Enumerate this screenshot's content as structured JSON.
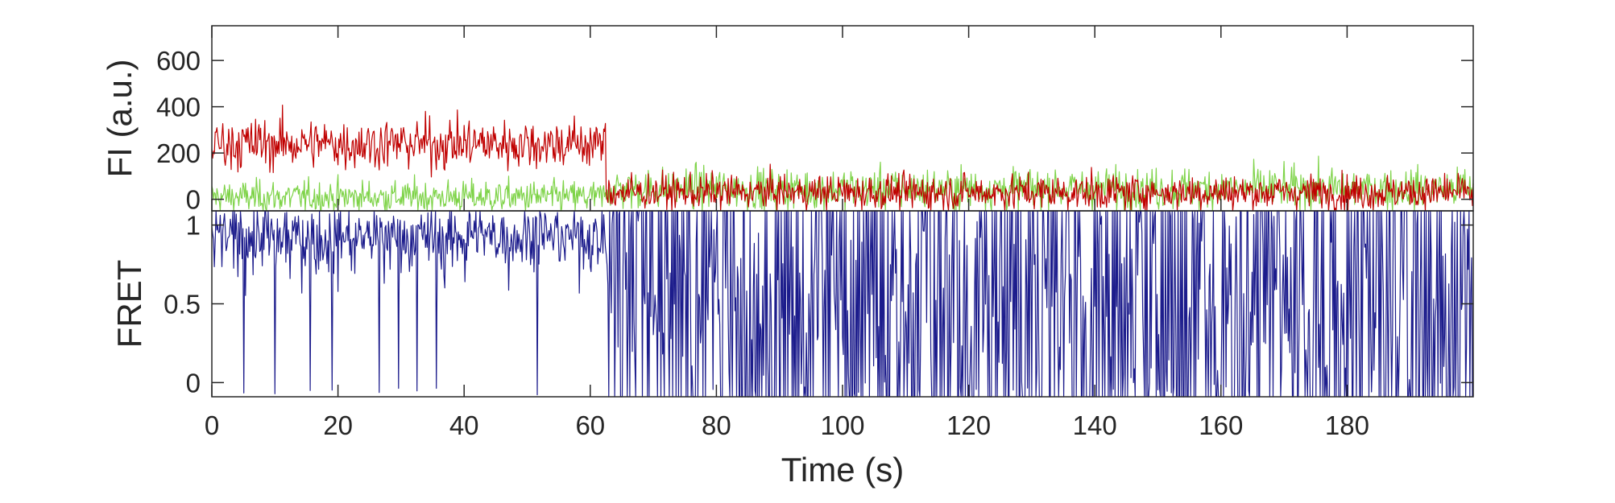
{
  "chart_data": [
    {
      "type": "line",
      "panel": "intensity",
      "ylabel": "FI (a.u.)",
      "xlim": [
        0,
        200
      ],
      "ylim": [
        -50,
        750
      ],
      "yticks": [
        0,
        200,
        400,
        600
      ],
      "ytick_labels": [
        "0",
        "200",
        "400",
        "600"
      ],
      "series": [
        {
          "color": "#c00000",
          "segments": [
            {
              "x_start": 0,
              "x_end": 62.5,
              "mean": 240,
              "noise_sd": 55
            },
            {
              "x_start": 62.5,
              "x_end": 200,
              "mean": 30,
              "noise_sd": 38
            }
          ]
        },
        {
          "color": "#7ed348",
          "segments": [
            {
              "x_start": 0,
              "x_end": 62.5,
              "mean": 10,
              "noise_sd": 35
            },
            {
              "x_start": 62.5,
              "x_end": 200,
              "mean": 45,
              "noise_sd": 45
            }
          ]
        }
      ]
    },
    {
      "type": "line",
      "panel": "fret",
      "ylabel": "FRET",
      "xlabel": "Time (s)",
      "xlim": [
        0,
        200
      ],
      "ylim": [
        -0.09,
        1.09
      ],
      "xticks": [
        0,
        20,
        40,
        60,
        80,
        100,
        120,
        140,
        160,
        180
      ],
      "xtick_labels": [
        "0",
        "20",
        "40",
        "60",
        "80",
        "100",
        "120",
        "140",
        "160",
        "180"
      ],
      "yticks": [
        0,
        0.5,
        1
      ],
      "ytick_labels": [
        "0",
        "0.5",
        "1"
      ],
      "series": [
        {
          "color": "#1c1c8c",
          "segments": [
            {
              "x_start": 0,
              "x_end": 62.5,
              "mean": 0.93,
              "noise_sd": 0.1,
              "max": 1.09
            },
            {
              "x_start": 62.5,
              "x_end": 200,
              "mean": 0.5,
              "noise_sd": 0.5,
              "min": -0.09,
              "max": 1.09
            }
          ],
          "deep_dips_x": [
            5,
            10,
            15.5,
            19,
            26.5,
            29.5,
            32.5,
            35.5,
            51.5
          ]
        }
      ]
    }
  ],
  "colors": {
    "acceptor": "#c00000",
    "donor": "#7ed348",
    "fret": "#1c1c8c",
    "axes": "#262626"
  }
}
